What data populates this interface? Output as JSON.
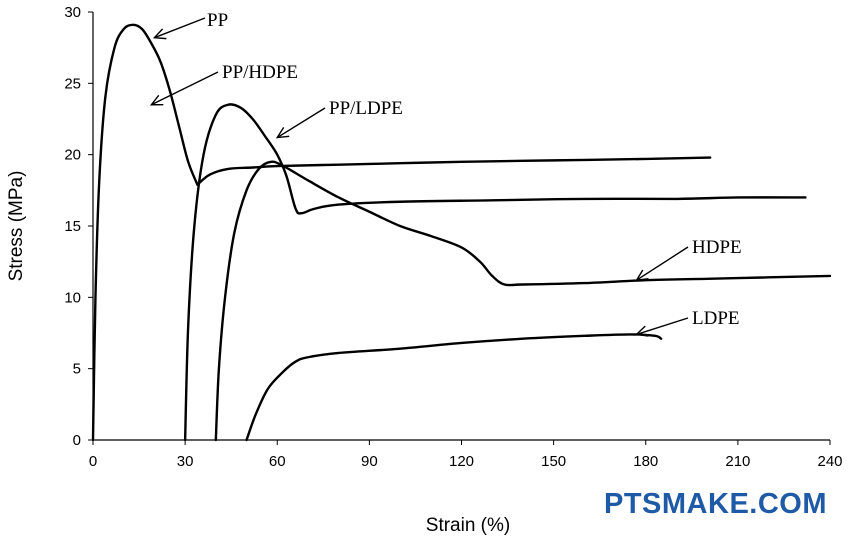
{
  "chart_data": {
    "type": "line",
    "title": "",
    "xlabel": "Strain (%)",
    "ylabel": "Stress (MPa)",
    "xlim": [
      0,
      240
    ],
    "ylim": [
      0,
      30
    ],
    "x_ticks": [
      "0",
      "30",
      "60",
      "90",
      "120",
      "150",
      "180",
      "210",
      "240"
    ],
    "y_ticks": [
      "0",
      "5",
      "10",
      "15",
      "20",
      "25",
      "30"
    ],
    "series": [
      {
        "name": "PP",
        "x": [
          0,
          0.8,
          2,
          4,
          7,
          10,
          13,
          16,
          19,
          22,
          25,
          28,
          31,
          34
        ],
        "y": [
          0,
          10,
          18,
          24,
          27.5,
          28.8,
          29.1,
          28.8,
          27.8,
          26.5,
          24.5,
          22,
          19.5,
          17.9
        ]
      },
      {
        "name": "PP/HDPE",
        "x": [
          34,
          38,
          44,
          52,
          60,
          80,
          100,
          120,
          150,
          180,
          201
        ],
        "y": [
          17.9,
          18.6,
          19,
          19.1,
          19.2,
          19.3,
          19.4,
          19.5,
          19.6,
          19.7,
          19.8
        ]
      },
      {
        "name": "PP/LDPE",
        "x": [
          30,
          31,
          33,
          36,
          40,
          44,
          48,
          52,
          56,
          60,
          63,
          66,
          68,
          72,
          80,
          100,
          130,
          160,
          190,
          210,
          232
        ],
        "y": [
          0,
          8,
          15,
          20,
          22.8,
          23.5,
          23.3,
          22.5,
          21.3,
          20,
          18.5,
          16.2,
          15.9,
          16.2,
          16.5,
          16.7,
          16.8,
          16.9,
          16.9,
          17,
          17
        ]
      },
      {
        "name": "HDPE",
        "x": [
          40,
          41,
          43,
          46,
          50,
          54,
          58,
          62,
          70,
          80,
          90,
          100,
          110,
          120,
          126,
          130,
          134,
          140,
          160,
          180,
          200,
          220,
          240
        ],
        "y": [
          0,
          5,
          10,
          14.5,
          17.5,
          19,
          19.5,
          19.2,
          18.2,
          17,
          16,
          15,
          14.3,
          13.5,
          12.5,
          11.5,
          10.9,
          10.9,
          11,
          11.2,
          11.3,
          11.4,
          11.5
        ]
      },
      {
        "name": "LDPE",
        "x": [
          50,
          53,
          57,
          62,
          66,
          70,
          80,
          100,
          120,
          140,
          160,
          175,
          183,
          185
        ],
        "y": [
          0,
          1.8,
          3.6,
          4.8,
          5.5,
          5.8,
          6.1,
          6.4,
          6.8,
          7.1,
          7.3,
          7.4,
          7.3,
          7.1
        ]
      }
    ],
    "annotations": [
      {
        "text": "PP",
        "target_x": 20,
        "target_y": 28.2
      },
      {
        "text": "PP/HDPE",
        "target_x": 19,
        "target_y": 23.5
      },
      {
        "text": "PP/LDPE",
        "target_x": 60,
        "target_y": 21.2
      },
      {
        "text": "HDPE",
        "target_x": 177,
        "target_y": 11.2
      },
      {
        "text": "LDPE",
        "target_x": 177,
        "target_y": 7.4
      }
    ]
  },
  "watermark": "PTSMAKE.COM"
}
